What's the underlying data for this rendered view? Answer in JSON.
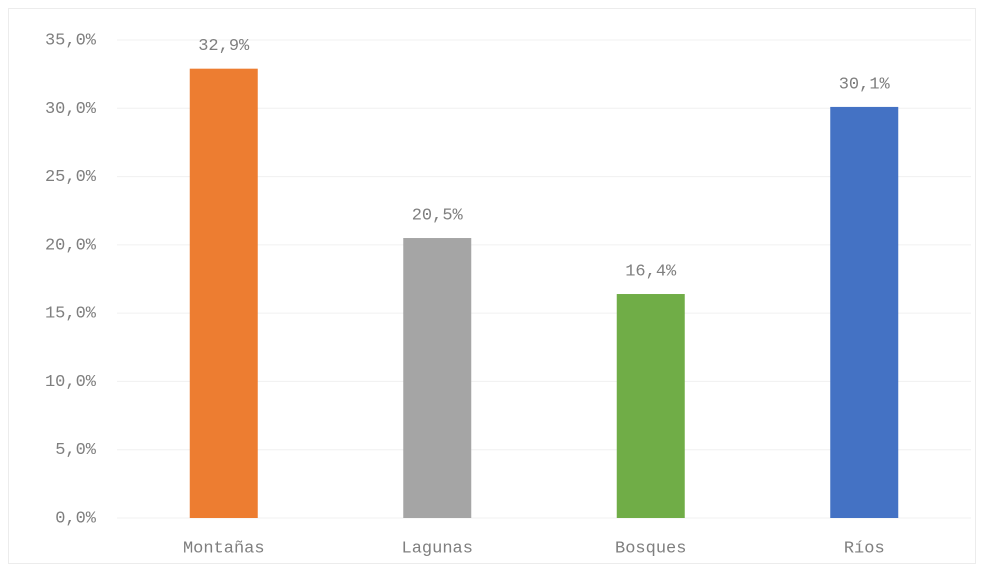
{
  "chart_data": {
    "type": "bar",
    "categories": [
      "Montañas",
      "Lagunas",
      "Bosques",
      "Ríos"
    ],
    "values": [
      32.9,
      20.5,
      16.4,
      30.1
    ],
    "value_labels": [
      "32,9%",
      "20,5%",
      "16,4%",
      "30,1%"
    ],
    "colors": [
      "#ed7d31",
      "#a5a5a5",
      "#70ad47",
      "#4472c4"
    ],
    "ylim": [
      0,
      35
    ],
    "yticks": [
      {
        "value": 0,
        "label": "0,0%"
      },
      {
        "value": 5,
        "label": "5,0%"
      },
      {
        "value": 10,
        "label": "10,0%"
      },
      {
        "value": 15,
        "label": "15,0%"
      },
      {
        "value": 20,
        "label": "20,0%"
      },
      {
        "value": 25,
        "label": "25,0%"
      },
      {
        "value": 30,
        "label": "30,0%"
      },
      {
        "value": 35,
        "label": "35,0%"
      }
    ],
    "grid": true
  }
}
